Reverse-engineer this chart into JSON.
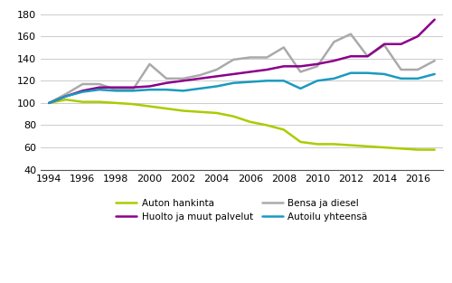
{
  "years": [
    1994,
    1995,
    1996,
    1997,
    1998,
    1999,
    2000,
    2001,
    2002,
    2003,
    2004,
    2005,
    2006,
    2007,
    2008,
    2009,
    2010,
    2011,
    2012,
    2013,
    2014,
    2015,
    2016,
    2017
  ],
  "auton_hankinta": [
    100,
    103,
    101,
    101,
    100,
    99,
    97,
    95,
    93,
    92,
    91,
    88,
    83,
    80,
    76,
    65,
    63,
    63,
    62,
    61,
    60,
    59,
    58,
    58
  ],
  "bensa_diesel": [
    100,
    108,
    117,
    117,
    112,
    112,
    135,
    122,
    122,
    125,
    130,
    139,
    141,
    141,
    150,
    128,
    133,
    155,
    162,
    142,
    152,
    130,
    130,
    138
  ],
  "huolto_palvelut": [
    100,
    106,
    111,
    114,
    114,
    114,
    115,
    118,
    120,
    122,
    124,
    126,
    128,
    130,
    133,
    133,
    135,
    138,
    142,
    142,
    153,
    153,
    160,
    175
  ],
  "autoilu_yhteensa": [
    100,
    106,
    110,
    112,
    111,
    111,
    112,
    112,
    111,
    113,
    115,
    118,
    119,
    120,
    120,
    113,
    120,
    122,
    127,
    127,
    126,
    122,
    122,
    126
  ],
  "series_colors": {
    "auton_hankinta": "#aacc00",
    "bensa_diesel": "#aaaaaa",
    "huolto_palvelut": "#8b008b",
    "autoilu_yhteensa": "#1a9abf"
  },
  "series_labels": {
    "auton_hankinta": "Auton hankinta",
    "bensa_diesel": "Bensa ja diesel",
    "huolto_palvelut": "Huolto ja muut palvelut",
    "autoilu_yhteensa": "Autoilu yhteensä"
  },
  "ylim": [
    40,
    185
  ],
  "yticks": [
    40,
    60,
    80,
    100,
    120,
    140,
    160,
    180
  ],
  "xticks": [
    1994,
    1996,
    1998,
    2000,
    2002,
    2004,
    2006,
    2008,
    2010,
    2012,
    2014,
    2016
  ],
  "background_color": "#ffffff",
  "grid_color": "#cccccc",
  "line_width": 1.8
}
